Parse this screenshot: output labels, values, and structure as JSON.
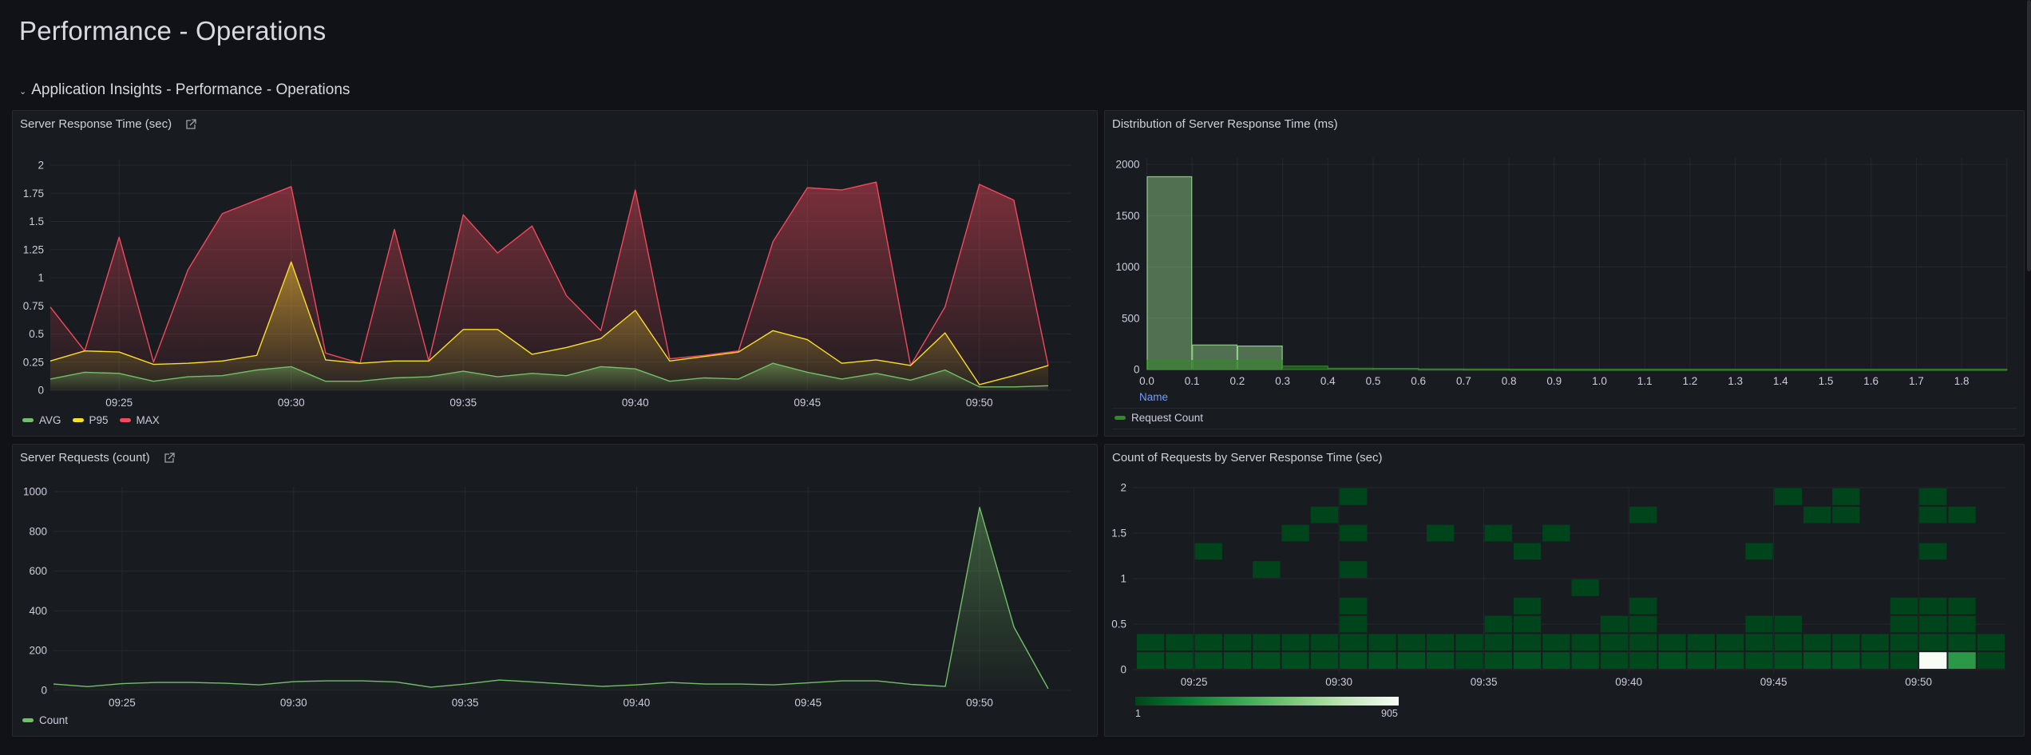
{
  "page": {
    "title": "Performance - Operations",
    "row_header": "Application Insights - Performance - Operations"
  },
  "panels": {
    "response_time": {
      "title": "Server Response Time (sec)",
      "icon": "external-link-icon"
    },
    "distribution": {
      "title": "Distribution of Server Response Time (ms)",
      "x_field_label": "Name"
    },
    "requests": {
      "title": "Server Requests (count)",
      "icon": "external-link-icon"
    },
    "heatmap": {
      "title": "Count of Requests by Server Response Time (sec)"
    }
  },
  "colors": {
    "avg": "#73bf69",
    "p95": "#fade2a",
    "max": "#f2495c",
    "count": "#73bf69",
    "request_count": "#37872d",
    "histogram_light": "#96d98d"
  },
  "chart_data": [
    {
      "id": "response_time",
      "type": "area",
      "title": "Server Response Time (sec)",
      "x": [
        "09:23",
        "09:24",
        "09:25",
        "09:26",
        "09:27",
        "09:28",
        "09:29",
        "09:30",
        "09:31",
        "09:32",
        "09:33",
        "09:34",
        "09:35",
        "09:36",
        "09:37",
        "09:38",
        "09:39",
        "09:40",
        "09:41",
        "09:42",
        "09:43",
        "09:44",
        "09:45",
        "09:46",
        "09:47",
        "09:48",
        "09:49",
        "09:50",
        "09:51",
        "09:52"
      ],
      "x_ticks": [
        "09:25",
        "09:30",
        "09:35",
        "09:40",
        "09:45",
        "09:50"
      ],
      "y_ticks": [
        "0",
        "0.25",
        "0.5",
        "0.75",
        "1",
        "1.25",
        "1.5",
        "1.75",
        "2"
      ],
      "ylim": [
        0,
        2
      ],
      "grid": true,
      "legend": "bottom-left",
      "series": [
        {
          "name": "AVG",
          "color": "#73bf69",
          "values": [
            0.1,
            0.16,
            0.15,
            0.08,
            0.12,
            0.13,
            0.18,
            0.21,
            0.08,
            0.08,
            0.11,
            0.12,
            0.17,
            0.12,
            0.15,
            0.13,
            0.21,
            0.19,
            0.08,
            0.11,
            0.1,
            0.24,
            0.16,
            0.1,
            0.15,
            0.09,
            0.18,
            0.03,
            0.03,
            0.04
          ]
        },
        {
          "name": "P95",
          "color": "#fade2a",
          "values": [
            0.26,
            0.35,
            0.34,
            0.23,
            0.24,
            0.26,
            0.31,
            1.14,
            0.27,
            0.24,
            0.26,
            0.26,
            0.54,
            0.54,
            0.32,
            0.38,
            0.46,
            0.71,
            0.26,
            0.3,
            0.34,
            0.53,
            0.45,
            0.24,
            0.27,
            0.22,
            0.51,
            0.05,
            0.13,
            0.22
          ]
        },
        {
          "name": "MAX",
          "color": "#f2495c",
          "values": [
            0.74,
            0.35,
            1.36,
            0.25,
            1.07,
            1.57,
            1.69,
            1.81,
            0.33,
            0.24,
            1.43,
            0.26,
            1.56,
            1.22,
            1.46,
            0.84,
            0.53,
            1.78,
            0.28,
            0.31,
            0.35,
            1.32,
            1.8,
            1.78,
            1.85,
            0.22,
            0.74,
            1.83,
            1.69,
            0.22
          ]
        }
      ]
    },
    {
      "id": "distribution",
      "type": "bar",
      "title": "Distribution of Server Response Time (ms)",
      "xlabel": "Name",
      "x_ticks": [
        "0.0",
        "0.1",
        "0.2",
        "0.3",
        "0.4",
        "0.5",
        "0.6",
        "0.7",
        "0.8",
        "0.9",
        "1.0",
        "1.1",
        "1.2",
        "1.3",
        "1.4",
        "1.5",
        "1.6",
        "1.7",
        "1.8"
      ],
      "y_ticks": [
        "0",
        "500",
        "1000",
        "1500",
        "2000"
      ],
      "xlim": [
        0,
        1.9
      ],
      "ylim": [
        0,
        2000
      ],
      "grid": true,
      "legend": "bottom-left",
      "series": [
        {
          "name": "Request Count",
          "color": "#37872d",
          "bins": [
            [
              0,
              0.1,
              88
            ],
            [
              0.1,
              0.2,
              88
            ],
            [
              0.2,
              0.3,
              88
            ],
            [
              0.3,
              0.4,
              34
            ],
            [
              0.4,
              0.5,
              13
            ],
            [
              0.5,
              0.6,
              12
            ],
            [
              0.6,
              0.7,
              6
            ],
            [
              0.7,
              0.8,
              5
            ],
            [
              0.8,
              0.9,
              4
            ],
            [
              0.9,
              1.0,
              3
            ],
            [
              1.0,
              1.9,
              3
            ]
          ]
        },
        {
          "name": "",
          "color": "#96d98d",
          "bins": [
            [
              0,
              0.1,
              1880
            ],
            [
              0.1,
              0.2,
              239
            ],
            [
              0.2,
              0.3,
              229
            ]
          ]
        }
      ],
      "legend_entries": [
        "Request Count"
      ]
    },
    {
      "id": "requests",
      "type": "area",
      "title": "Server Requests (count)",
      "x": [
        "09:23",
        "09:24",
        "09:25",
        "09:26",
        "09:27",
        "09:28",
        "09:29",
        "09:30",
        "09:31",
        "09:32",
        "09:33",
        "09:34",
        "09:35",
        "09:36",
        "09:37",
        "09:38",
        "09:39",
        "09:40",
        "09:41",
        "09:42",
        "09:43",
        "09:44",
        "09:45",
        "09:46",
        "09:47",
        "09:48",
        "09:49",
        "09:50",
        "09:51",
        "09:52"
      ],
      "x_ticks": [
        "09:25",
        "09:30",
        "09:35",
        "09:40",
        "09:45",
        "09:50"
      ],
      "y_ticks": [
        "0",
        "200",
        "400",
        "600",
        "800",
        "1000"
      ],
      "ylim": [
        0,
        1000
      ],
      "grid": true,
      "legend": "bottom-left",
      "series": [
        {
          "name": "Count",
          "color": "#73bf69",
          "values": [
            32,
            19,
            34,
            40,
            40,
            36,
            28,
            44,
            48,
            48,
            42,
            16,
            32,
            52,
            42,
            31,
            20,
            28,
            40,
            32,
            32,
            28,
            38,
            48,
            48,
            30,
            20,
            921,
            319,
            8
          ]
        }
      ]
    },
    {
      "id": "heatmap",
      "type": "heatmap",
      "title": "Count of Requests by Server Response Time (sec)",
      "x": [
        "09:23",
        "09:24",
        "09:25",
        "09:26",
        "09:27",
        "09:28",
        "09:29",
        "09:30",
        "09:31",
        "09:32",
        "09:33",
        "09:34",
        "09:35",
        "09:36",
        "09:37",
        "09:38",
        "09:39",
        "09:40",
        "09:41",
        "09:42",
        "09:43",
        "09:44",
        "09:45",
        "09:46",
        "09:47",
        "09:48",
        "09:49",
        "09:50",
        "09:51",
        "09:52"
      ],
      "x_ticks": [
        "09:25",
        "09:30",
        "09:35",
        "09:40",
        "09:45",
        "09:50"
      ],
      "y_buckets": [
        "0-0.2",
        "0.2-0.4",
        "0.4-0.6",
        "0.6-0.8",
        "0.8-1.0",
        "1.0-1.2",
        "1.2-1.4",
        "1.4-1.6",
        "1.6-1.8",
        "1.8-2.0"
      ],
      "y_ticks": [
        "0",
        "0.5",
        "1",
        "1.5",
        "2"
      ],
      "ylim": [
        0,
        2
      ],
      "color_scale": {
        "min": 1,
        "max": 905,
        "from": "#00441b",
        "to": "#f7fcf5"
      },
      "cells": [
        [
          0,
          0,
          30
        ],
        [
          0,
          1,
          12
        ],
        [
          1,
          0,
          28
        ],
        [
          1,
          1,
          8
        ],
        [
          2,
          0,
          32
        ],
        [
          2,
          1,
          10
        ],
        [
          2,
          6,
          1
        ],
        [
          3,
          0,
          36
        ],
        [
          3,
          1,
          6
        ],
        [
          4,
          0,
          34
        ],
        [
          4,
          1,
          8
        ],
        [
          4,
          5,
          1
        ],
        [
          5,
          0,
          30
        ],
        [
          5,
          1,
          8
        ],
        [
          5,
          7,
          1
        ],
        [
          6,
          0,
          26
        ],
        [
          6,
          1,
          4
        ],
        [
          6,
          8,
          1
        ],
        [
          7,
          0,
          34
        ],
        [
          7,
          1,
          4
        ],
        [
          7,
          2,
          1
        ],
        [
          7,
          3,
          1
        ],
        [
          7,
          5,
          1
        ],
        [
          7,
          7,
          1
        ],
        [
          7,
          9,
          1
        ],
        [
          8,
          0,
          44
        ],
        [
          8,
          1,
          4
        ],
        [
          9,
          0,
          42
        ],
        [
          9,
          1,
          6
        ],
        [
          10,
          0,
          36
        ],
        [
          10,
          1,
          6
        ],
        [
          10,
          7,
          1
        ],
        [
          11,
          0,
          12
        ],
        [
          11,
          1,
          4
        ],
        [
          12,
          0,
          26
        ],
        [
          12,
          1,
          4
        ],
        [
          12,
          2,
          1
        ],
        [
          12,
          7,
          1
        ],
        [
          13,
          0,
          46
        ],
        [
          13,
          1,
          6
        ],
        [
          13,
          2,
          1
        ],
        [
          13,
          3,
          1
        ],
        [
          13,
          6,
          1
        ],
        [
          14,
          0,
          36
        ],
        [
          14,
          1,
          6
        ],
        [
          14,
          7,
          1
        ],
        [
          15,
          0,
          28
        ],
        [
          15,
          1,
          4
        ],
        [
          15,
          4,
          1
        ],
        [
          16,
          0,
          14
        ],
        [
          16,
          1,
          4
        ],
        [
          16,
          2,
          1
        ],
        [
          17,
          0,
          18
        ],
        [
          17,
          1,
          4
        ],
        [
          17,
          2,
          1
        ],
        [
          17,
          3,
          1
        ],
        [
          17,
          8,
          1
        ],
        [
          18,
          0,
          38
        ],
        [
          18,
          1,
          4
        ],
        [
          19,
          0,
          28
        ],
        [
          19,
          1,
          4
        ],
        [
          20,
          0,
          30
        ],
        [
          20,
          1,
          4
        ],
        [
          21,
          0,
          22
        ],
        [
          21,
          1,
          4
        ],
        [
          21,
          2,
          1
        ],
        [
          21,
          6,
          1
        ],
        [
          22,
          0,
          30
        ],
        [
          22,
          1,
          4
        ],
        [
          22,
          2,
          1
        ],
        [
          22,
          9,
          1
        ],
        [
          23,
          0,
          40
        ],
        [
          23,
          1,
          6
        ],
        [
          23,
          8,
          1
        ],
        [
          24,
          0,
          40
        ],
        [
          24,
          1,
          6
        ],
        [
          24,
          8,
          1
        ],
        [
          24,
          9,
          1
        ],
        [
          25,
          0,
          26
        ],
        [
          25,
          1,
          4
        ],
        [
          26,
          0,
          14
        ],
        [
          26,
          1,
          4
        ],
        [
          26,
          2,
          1
        ],
        [
          26,
          3,
          1
        ],
        [
          27,
          0,
          905
        ],
        [
          27,
          1,
          8
        ],
        [
          27,
          2,
          2
        ],
        [
          27,
          3,
          2
        ],
        [
          27,
          6,
          1
        ],
        [
          27,
          8,
          1
        ],
        [
          27,
          9,
          1
        ],
        [
          28,
          0,
          300
        ],
        [
          28,
          1,
          12
        ],
        [
          28,
          2,
          2
        ],
        [
          28,
          3,
          1
        ],
        [
          28,
          8,
          1
        ],
        [
          29,
          0,
          6
        ],
        [
          29,
          1,
          2
        ]
      ],
      "legend": "bottom-left"
    }
  ]
}
